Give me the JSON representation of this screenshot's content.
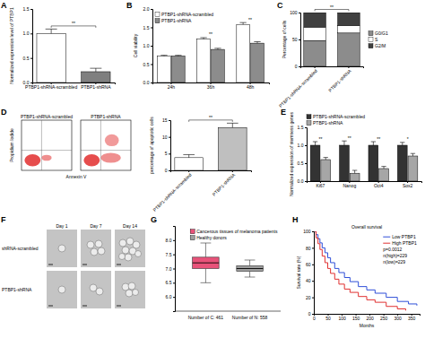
{
  "chart_data": [
    {
      "panel": "A",
      "type": "bar",
      "ylabel": "Normalized expression level of PTBP1",
      "categories": [
        "PTBP1-shRNA-scrambled",
        "PTBP1-shRNA"
      ],
      "values": [
        1.0,
        0.22
      ],
      "errors": [
        0.09,
        0.07
      ],
      "colors": [
        "#ffffff",
        "#7f7f7f"
      ],
      "ylim": [
        0,
        1.5
      ],
      "yticks": [
        {
          "value": 0,
          "label": "0.0"
        },
        {
          "value": 0.5,
          "label": "0.5"
        },
        {
          "value": 1,
          "label": "1.0"
        },
        {
          "value": 1.5,
          "label": "1.5"
        }
      ],
      "significance": "**"
    },
    {
      "panel": "B",
      "type": "bar",
      "ylabel": "Cell viability",
      "categories": [
        "24h",
        "36h",
        "48h"
      ],
      "series": [
        {
          "name": "PTBP1-shRNA-scrambled",
          "color": "#ffffff",
          "values": [
            0.72,
            1.18,
            1.58
          ],
          "errors": [
            0.02,
            0.04,
            0.05
          ]
        },
        {
          "name": "PTBP1-shRNA",
          "color": "#8c8c8c",
          "values": [
            0.72,
            0.9,
            1.07
          ],
          "errors": [
            0.02,
            0.03,
            0.04
          ]
        }
      ],
      "ylim": [
        0,
        2
      ],
      "yticks": [
        {
          "value": 0,
          "label": "0.0"
        },
        {
          "value": 0.5,
          "label": "0.5"
        },
        {
          "value": 1,
          "label": "1.0"
        },
        {
          "value": 1.5,
          "label": "1.5"
        },
        {
          "value": 2,
          "label": "2.0"
        }
      ],
      "legend": "top-left",
      "significance": [
        null,
        "**",
        "**"
      ]
    },
    {
      "panel": "C",
      "type": "bar",
      "stacked": true,
      "ylabel": "Percentage of cells",
      "categories": [
        "PTBP1-shRNA-scrambled",
        "PTBP1-shRNA"
      ],
      "series": [
        {
          "name": "G0/G1",
          "color": "#8c8c8c",
          "values": [
            48,
            62
          ]
        },
        {
          "name": "S",
          "color": "#ffffff",
          "values": [
            25,
            14
          ]
        },
        {
          "name": "G2/M",
          "color": "#404040",
          "values": [
            27,
            24
          ]
        }
      ],
      "ylim": [
        0,
        100
      ],
      "yticks": [
        0,
        50,
        100
      ],
      "legend": "right",
      "significance": "**"
    },
    {
      "panel": "D",
      "type": "bar",
      "flow_cytometry": {
        "plots": [
          "PTBP1-shRNA-scrambled",
          "PTBP1-shRNA"
        ],
        "xlabel": "Annexin V",
        "ylabel": "Propidium Iodide"
      },
      "ylabel": "percentage of apoptotic cells",
      "categories": [
        "PTBP1-shRNA-scrambled",
        "PTBP1-shRNA"
      ],
      "values": [
        3.8,
        12.8
      ],
      "errors": [
        0.9,
        1.3
      ],
      "colors": [
        "#ffffff",
        "#bfbfbf"
      ],
      "ylim": [
        0,
        15
      ],
      "yticks": [
        0,
        5,
        10,
        15
      ],
      "significance": "**"
    },
    {
      "panel": "E",
      "type": "bar",
      "ylabel": "Normalized expression of stemness genes",
      "categories": [
        "Ki67",
        "Nanog",
        "Oct4",
        "Sox2"
      ],
      "series": [
        {
          "name": "PTBP1-shRNA-scrambled",
          "color": "#333333",
          "values": [
            1,
            1,
            1,
            1
          ],
          "errors": [
            0.1,
            0.12,
            0.1,
            0.08
          ]
        },
        {
          "name": "PTBP1-shRNA",
          "color": "#a6a6a6",
          "values": [
            0.6,
            0.22,
            0.35,
            0.7
          ],
          "errors": [
            0.06,
            0.08,
            0.06,
            0.07
          ]
        }
      ],
      "ylim": [
        0,
        1.5
      ],
      "yticks": [
        {
          "value": 0,
          "label": "0.0"
        },
        {
          "value": 0.5,
          "label": "0.5"
        },
        {
          "value": 1,
          "label": "1.0"
        },
        {
          "value": 1.5,
          "label": "1.5"
        }
      ],
      "legend": "top",
      "significance": [
        "**",
        "**",
        "**",
        "*"
      ]
    },
    {
      "panel": "F",
      "type": "image_grid",
      "columns": [
        "Day 1",
        "Day 7",
        "Day 14"
      ],
      "rows": [
        "shRNA-scrambled",
        "PTBP1-shRNA"
      ]
    },
    {
      "panel": "G",
      "type": "box",
      "series": [
        {
          "name": "Cancerous tissues of melanoma patients",
          "color": "#e8537a",
          "min": 6.5,
          "q1": 7.0,
          "median": 7.2,
          "q3": 7.4,
          "max": 7.9
        },
        {
          "name": "Healthy donors",
          "color": "#9e9e9e",
          "min": 6.7,
          "q1": 6.9,
          "median": 7.0,
          "q3": 7.1,
          "max": 7.3
        }
      ],
      "ylim": [
        5.5,
        8.5
      ],
      "yticks": [
        {
          "value": 6,
          "label": "6.0"
        },
        {
          "value": 6.5,
          "label": "6.5"
        },
        {
          "value": 7,
          "label": "7.0"
        },
        {
          "value": 7.5,
          "label": "7.5"
        },
        {
          "value": 8,
          "label": "8.0"
        }
      ],
      "tick_labels": "y",
      "legend": "top-right",
      "annotations": [
        "Number of C: 461",
        "Number of N: 558"
      ]
    },
    {
      "panel": "H",
      "type": "step",
      "title": "Overall survival",
      "xlabel": "Months",
      "ylabel": "Survival rate (%)",
      "series": [
        {
          "name": "Low PTBP1",
          "color": "#2f4fd8",
          "x": [
            0,
            8,
            15,
            22,
            30,
            40,
            50,
            60,
            75,
            90,
            110,
            130,
            160,
            190,
            220,
            260,
            300,
            340,
            370
          ],
          "values": [
            100,
            96,
            91,
            86,
            80,
            74,
            68,
            62,
            55,
            50,
            44,
            39,
            33,
            29,
            25,
            20,
            15,
            12,
            10
          ]
        },
        {
          "name": "High PTBP1",
          "color": "#e03131",
          "x": [
            0,
            8,
            15,
            22,
            30,
            40,
            50,
            60,
            75,
            90,
            110,
            130,
            160,
            190,
            220,
            260,
            300,
            330
          ],
          "values": [
            100,
            92,
            85,
            78,
            70,
            62,
            55,
            49,
            42,
            36,
            30,
            26,
            21,
            17,
            14,
            9,
            6,
            4
          ]
        }
      ],
      "xlim": [
        0,
        380
      ],
      "xticks": [
        0,
        50,
        100,
        150,
        200,
        250,
        300,
        350
      ],
      "ylim": [
        0,
        100
      ],
      "yticks": [
        0,
        20,
        40,
        60,
        80,
        100
      ],
      "legend": "top-right",
      "annotations": [
        "p=0.0012",
        "n(high)=229",
        "n(low)=229"
      ]
    }
  ]
}
